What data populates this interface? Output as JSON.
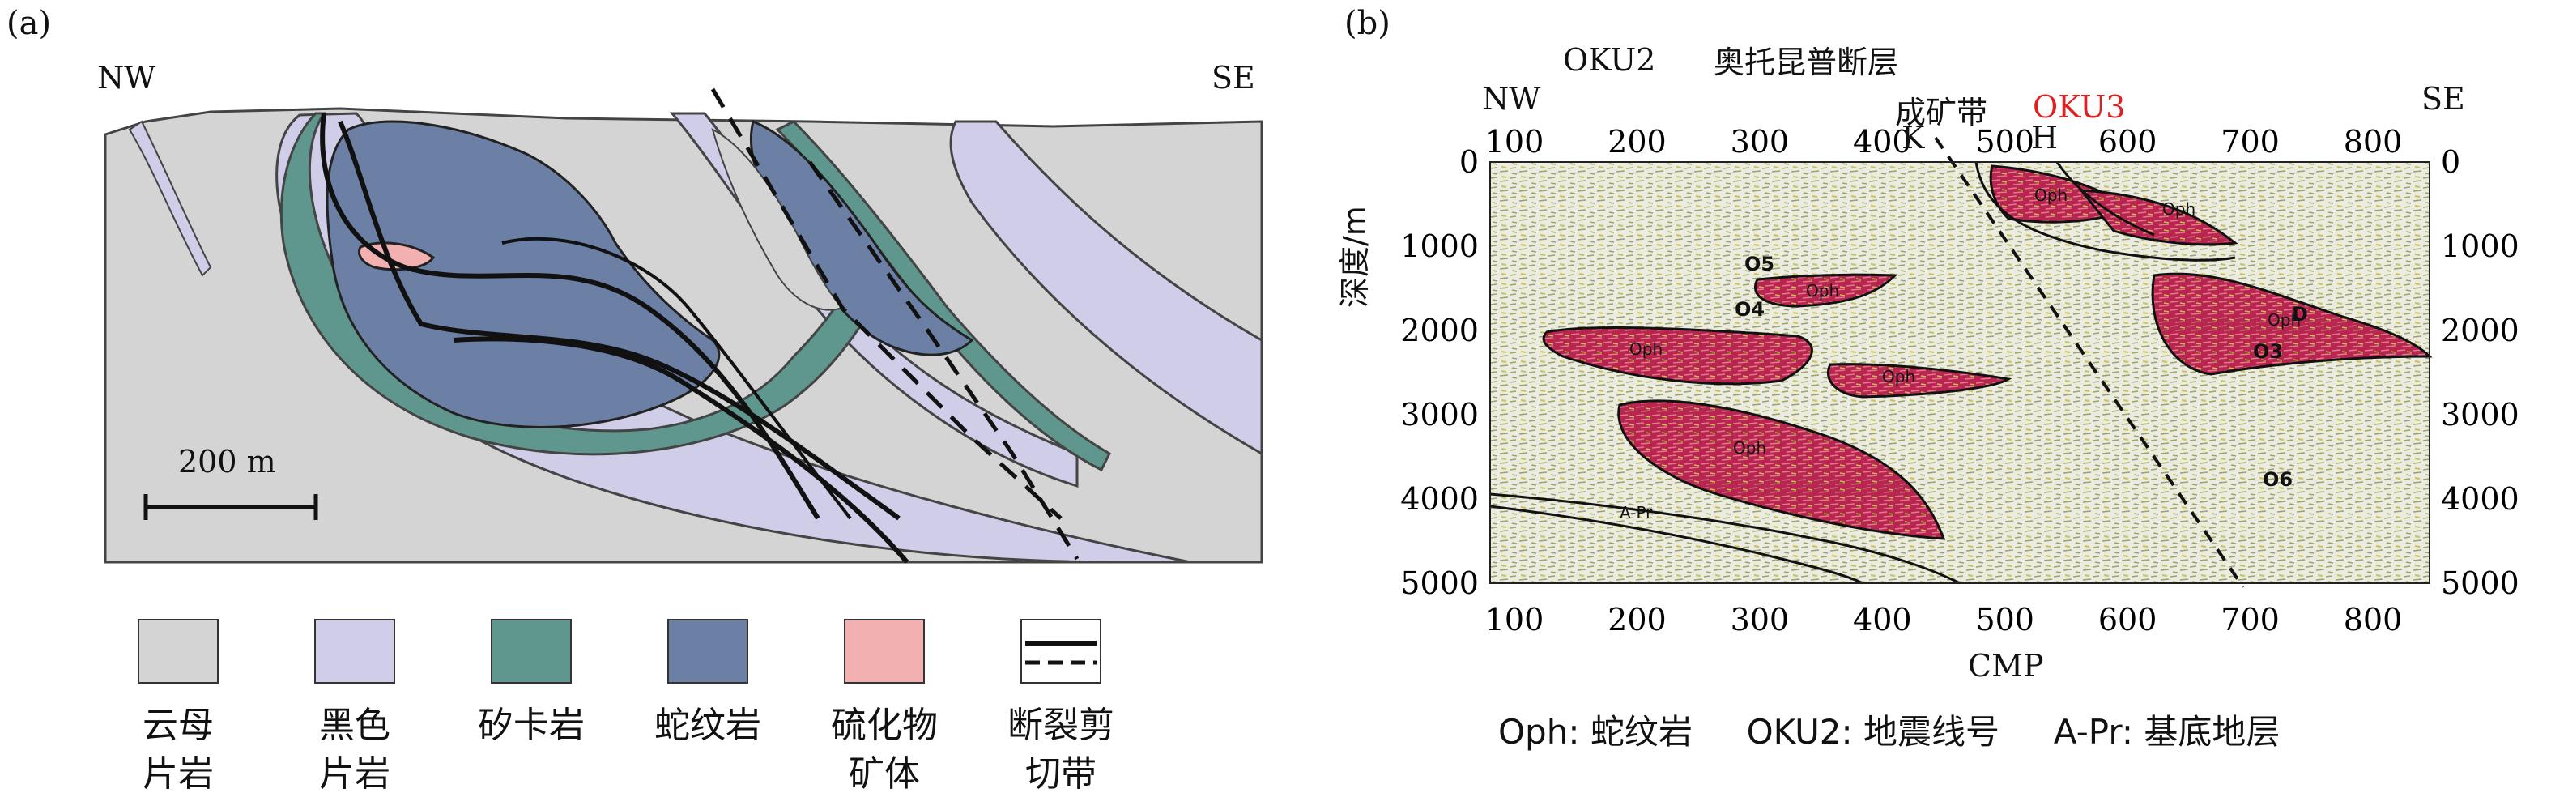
{
  "panel_a": {
    "label": "(a)",
    "nw": "NW",
    "se": "SE",
    "scale_text": "200 m",
    "colors": {
      "mica": "#d4d4d4",
      "black": "#cfcde8",
      "skarn": "#5f968d",
      "serp": "#6c7fa5",
      "sulfide": "#f2b0b0"
    },
    "legend": [
      {
        "text": "云母\n片岩",
        "color": "#d4d4d4"
      },
      {
        "text": "黑色\n片岩",
        "color": "#cfcde8"
      },
      {
        "text": "矽卡岩",
        "color": "#5f968d"
      },
      {
        "text": "蛇纹岩",
        "color": "#6c7fa5"
      },
      {
        "text": "硫化物\n矿体",
        "color": "#f2b0b0"
      },
      {
        "text": "断裂剪\n切带",
        "color": "fault-symbol"
      }
    ]
  },
  "panel_b": {
    "label": "(b)",
    "nw": "NW",
    "se": "SE",
    "okua": "OKU2",
    "fault_name": "奥托昆普断层",
    "ore_belt": "成矿带",
    "okub": "OKU3",
    "k_label": "K",
    "h_label": "H",
    "ylabel": "深度/m",
    "xlabel": "CMP",
    "footer": "Oph: 蛇纹岩     OKU2: 地震线号     A-Pr: 基底地层",
    "body_labels": [
      "O5",
      "O4",
      "O3",
      "O6",
      "D",
      "Oph",
      "A-Pr"
    ],
    "x_ticks": [
      "100",
      "200",
      "300",
      "400",
      "500",
      "600",
      "700",
      "800"
    ],
    "top_ticks": [
      "100",
      "200",
      "300",
      "400",
      "500",
      "600",
      "700",
      "800"
    ],
    "y_ticks": [
      "0",
      "1000",
      "2000",
      "3000",
      "4000",
      "5000"
    ],
    "accent": "#e02020"
  }
}
